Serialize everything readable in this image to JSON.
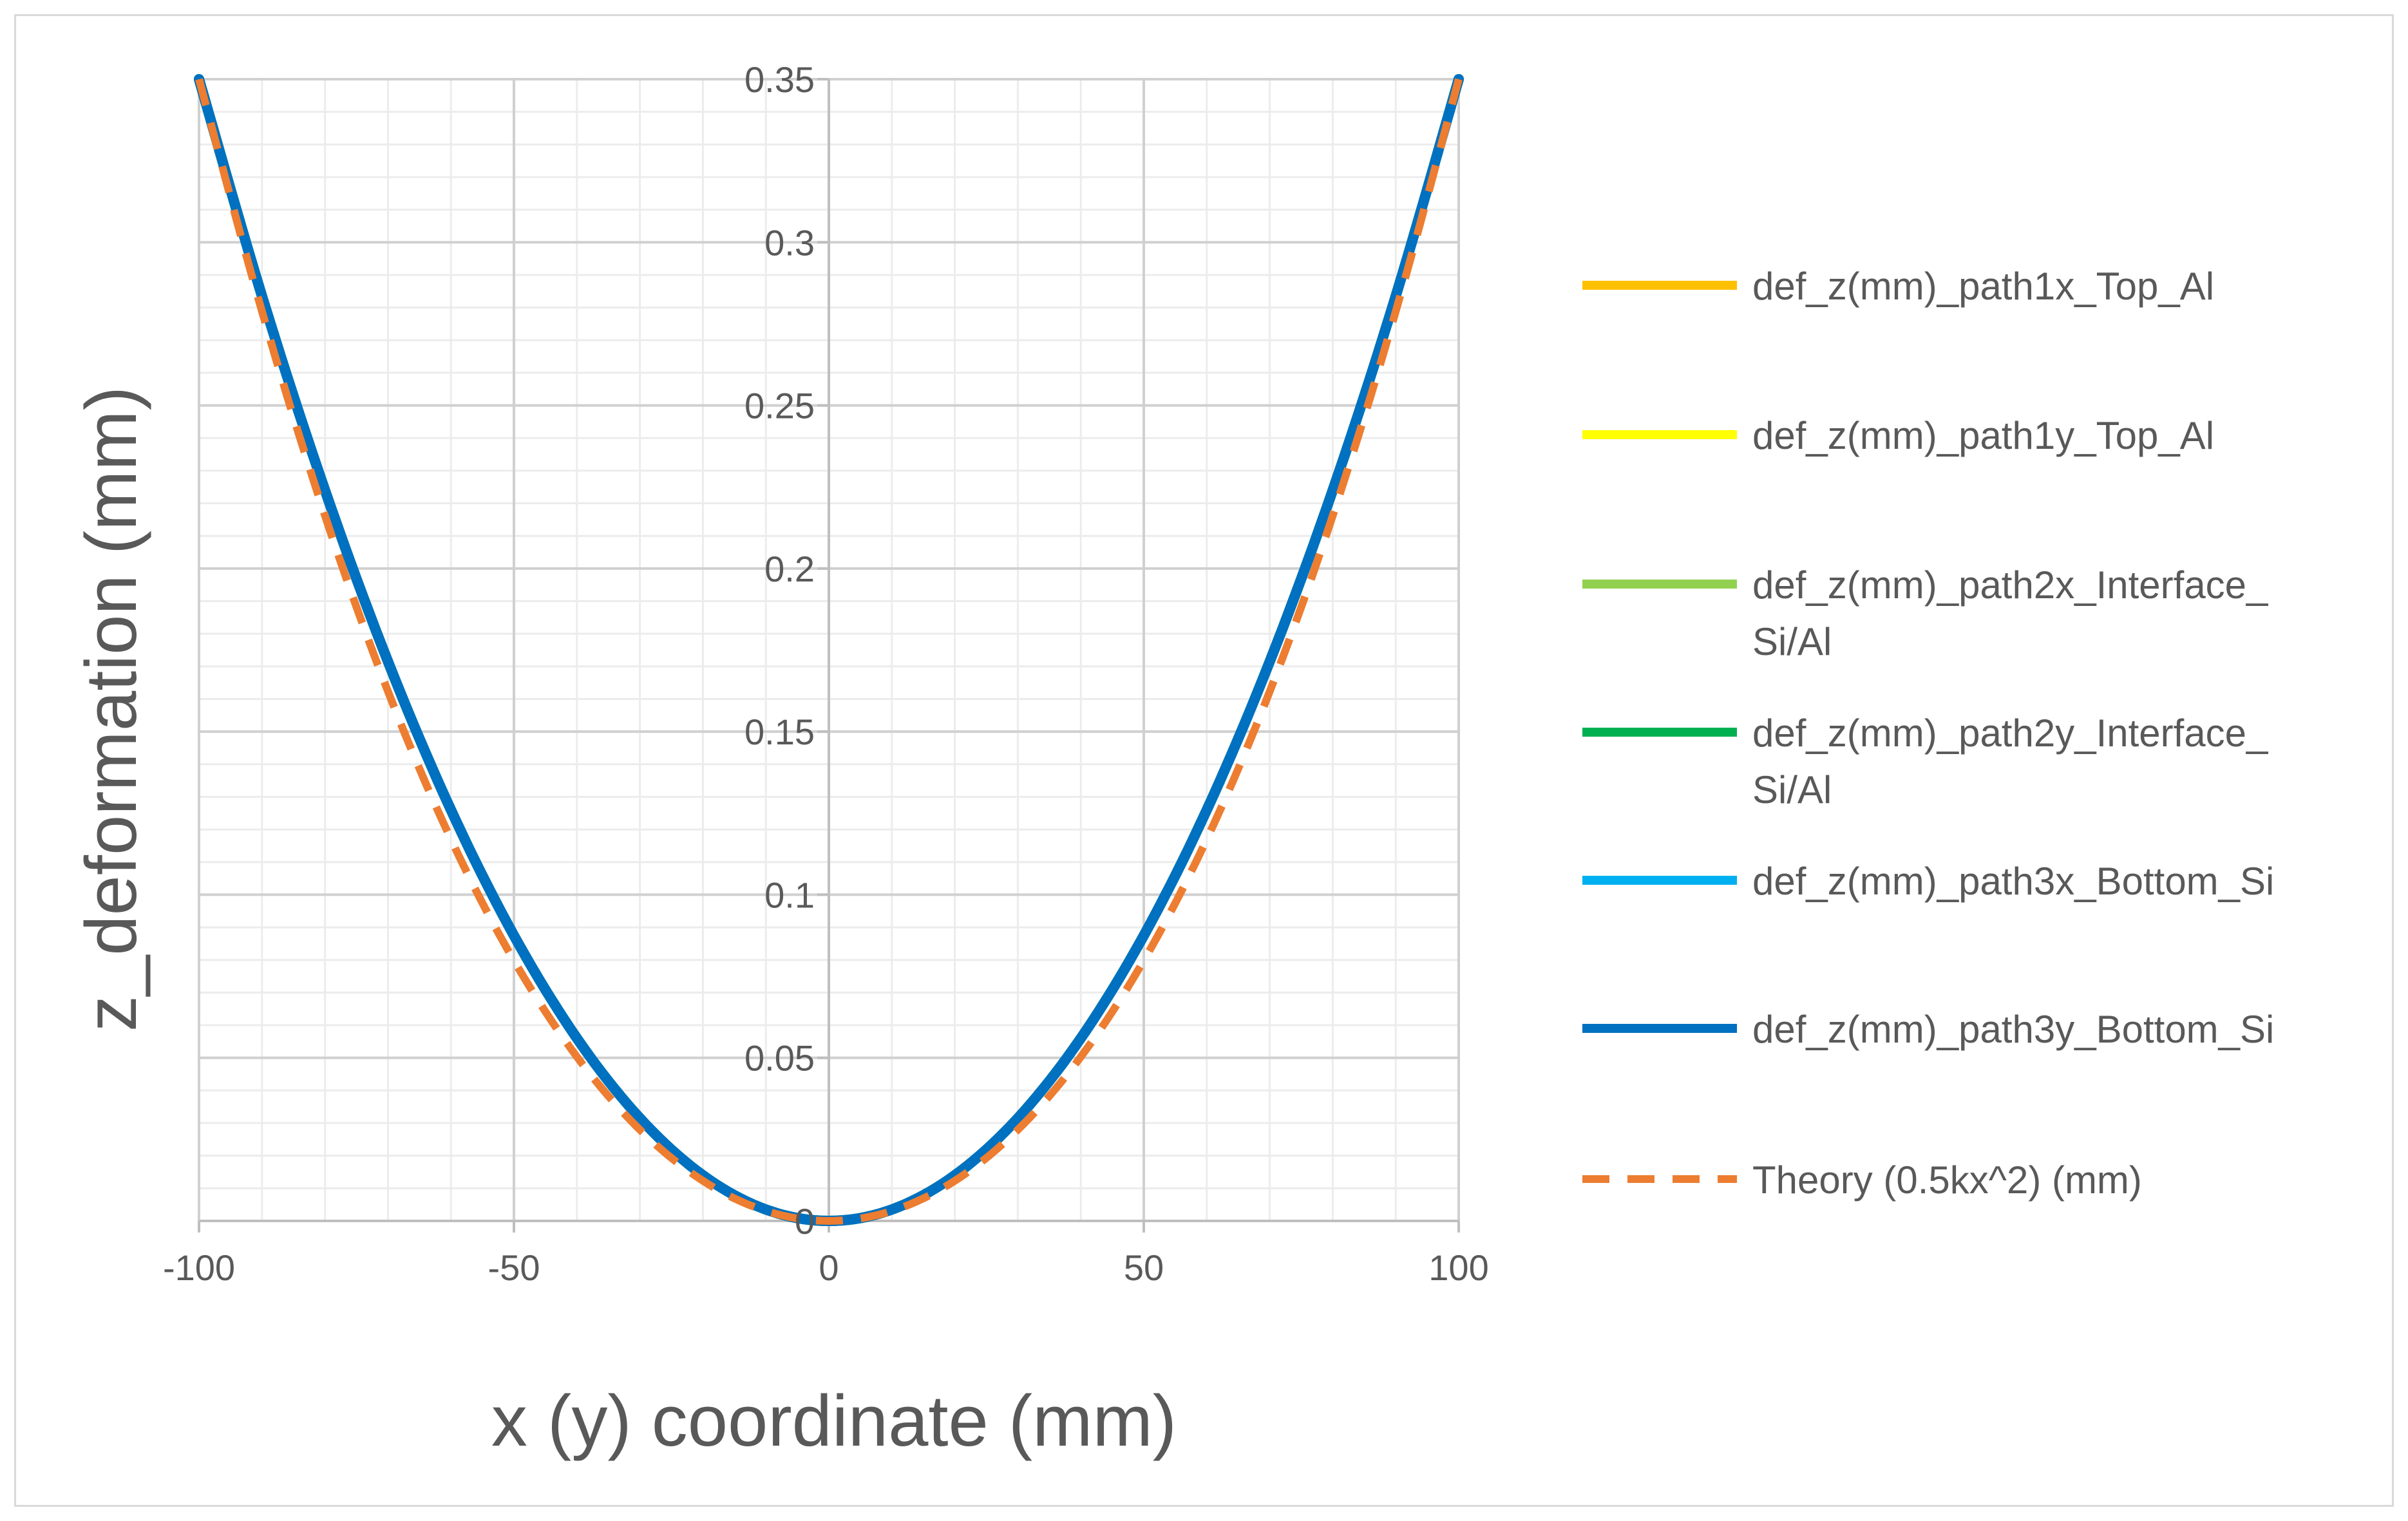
{
  "chart_data": {
    "type": "line",
    "title": "",
    "xlabel": "x (y) coordinate (mm)",
    "ylabel": "z_deformation (mm)",
    "xlim": [
      -100,
      100
    ],
    "ylim": [
      0,
      0.35
    ],
    "x_ticks": [
      "-100",
      "-50",
      "0",
      "50",
      "100"
    ],
    "y_ticks": [
      "0",
      "0.05",
      "0.1",
      "0.15",
      "0.2",
      "0.25",
      "0.3",
      "0.35"
    ],
    "grid": true,
    "legend_position": "right",
    "x": [
      -100,
      -90,
      -80,
      -70,
      -60,
      -50,
      -40,
      -30,
      -20,
      -10,
      0,
      10,
      20,
      30,
      40,
      50,
      60,
      70,
      80,
      90,
      100
    ],
    "series": [
      {
        "name": "def_z(mm)_path1x_Top_Al",
        "color": "#FFC000",
        "dash": "solid",
        "values": [
          0.35,
          0.2835,
          0.224,
          0.1715,
          0.126,
          0.0875,
          0.056,
          0.0315,
          0.014,
          0.0035,
          0,
          0.0035,
          0.014,
          0.0315,
          0.056,
          0.0875,
          0.126,
          0.1715,
          0.224,
          0.2835,
          0.35
        ]
      },
      {
        "name": "def_z(mm)_path1y_Top_Al",
        "color": "#FFFF00",
        "dash": "solid",
        "values": [
          0.35,
          0.2835,
          0.224,
          0.1715,
          0.126,
          0.0875,
          0.056,
          0.0315,
          0.014,
          0.0035,
          0,
          0.0035,
          0.014,
          0.0315,
          0.056,
          0.0875,
          0.126,
          0.1715,
          0.224,
          0.2835,
          0.35
        ]
      },
      {
        "name": "def_z(mm)_path2x_Interface_Si/Al",
        "color": "#92D050",
        "dash": "solid",
        "values": [
          0.35,
          0.2835,
          0.224,
          0.1715,
          0.126,
          0.0875,
          0.056,
          0.0315,
          0.014,
          0.0035,
          0,
          0.0035,
          0.014,
          0.0315,
          0.056,
          0.0875,
          0.126,
          0.1715,
          0.224,
          0.2835,
          0.35
        ]
      },
      {
        "name": "def_z(mm)_path2y_Interface_Si/Al",
        "color": "#00B050",
        "dash": "solid",
        "values": [
          0.35,
          0.2835,
          0.224,
          0.1715,
          0.126,
          0.0875,
          0.056,
          0.0315,
          0.014,
          0.0035,
          0,
          0.0035,
          0.014,
          0.0315,
          0.056,
          0.0875,
          0.126,
          0.1715,
          0.224,
          0.2835,
          0.35
        ]
      },
      {
        "name": "def_z(mm)_path3x_Bottom_Si",
        "color": "#00B0F0",
        "dash": "solid",
        "values": [
          0.35,
          0.2835,
          0.224,
          0.1715,
          0.126,
          0.0875,
          0.056,
          0.0315,
          0.014,
          0.0035,
          0,
          0.0035,
          0.014,
          0.0315,
          0.056,
          0.0875,
          0.126,
          0.1715,
          0.224,
          0.2835,
          0.35
        ]
      },
      {
        "name": "def_z(mm)_path3y_Bottom_Si",
        "color": "#0070C0",
        "dash": "solid",
        "values": [
          0.35,
          0.2835,
          0.224,
          0.1715,
          0.126,
          0.0875,
          0.056,
          0.0315,
          0.014,
          0.0035,
          0,
          0.0035,
          0.014,
          0.0315,
          0.056,
          0.0875,
          0.126,
          0.1715,
          0.224,
          0.2835,
          0.35
        ]
      },
      {
        "name": "Theory (0.5kx^2) (mm)",
        "color": "#ED7D31",
        "dash": "dashed",
        "values": [
          0.35,
          0.2835,
          0.224,
          0.1715,
          0.126,
          0.0875,
          0.056,
          0.0315,
          0.014,
          0.0035,
          0,
          0.0035,
          0.014,
          0.0315,
          0.056,
          0.0875,
          0.126,
          0.1715,
          0.224,
          0.2835,
          0.35
        ]
      }
    ],
    "legend": [
      {
        "lines": [
          "def_z(mm)_path1x_Top_Al"
        ]
      },
      {
        "lines": [
          "def_z(mm)_path1y_Top_Al"
        ]
      },
      {
        "lines": [
          "def_z(mm)_path2x_Interface_",
          "Si/Al"
        ]
      },
      {
        "lines": [
          "def_z(mm)_path2y_Interface_",
          "Si/Al"
        ]
      },
      {
        "lines": [
          "def_z(mm)_path3x_Bottom_Si"
        ]
      },
      {
        "lines": [
          "def_z(mm)_path3y_Bottom_Si"
        ]
      },
      {
        "lines": [
          "Theory (0.5kx^2) (mm)"
        ]
      }
    ]
  }
}
